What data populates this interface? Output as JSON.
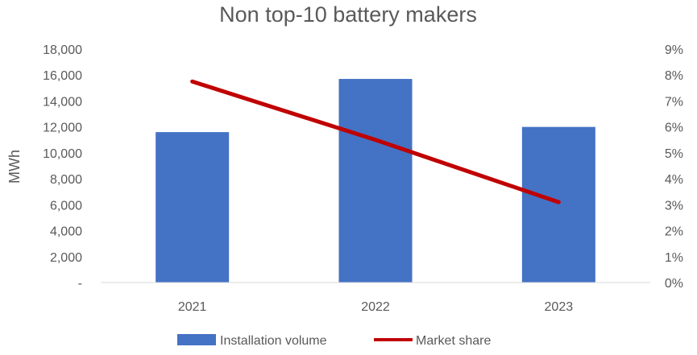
{
  "chart_data": {
    "type": "bar+line",
    "title": "Non top-10 battery makers",
    "categories": [
      "2021",
      "2022",
      "2023"
    ],
    "series": [
      {
        "name": "Installation volume",
        "type": "bar",
        "axis": "left",
        "values": [
          11600,
          15700,
          12000
        ],
        "color": "#4472C4"
      },
      {
        "name": "Market share",
        "type": "line",
        "axis": "right",
        "values": [
          7.75,
          5.5,
          3.1
        ],
        "color": "#C00000"
      }
    ],
    "ylabel": "MWh",
    "ylim": [
      0,
      18000
    ],
    "y_ticks": [
      "-",
      "2,000",
      "4,000",
      "6,000",
      "8,000",
      "10,000",
      "12,000",
      "14,000",
      "16,000",
      "18,000"
    ],
    "y2lim": [
      0,
      9
    ],
    "y2_ticks": [
      "0%",
      "1%",
      "2%",
      "3%",
      "4%",
      "5%",
      "6%",
      "7%",
      "8%",
      "9%"
    ],
    "legend_position": "bottom",
    "grid": false
  }
}
